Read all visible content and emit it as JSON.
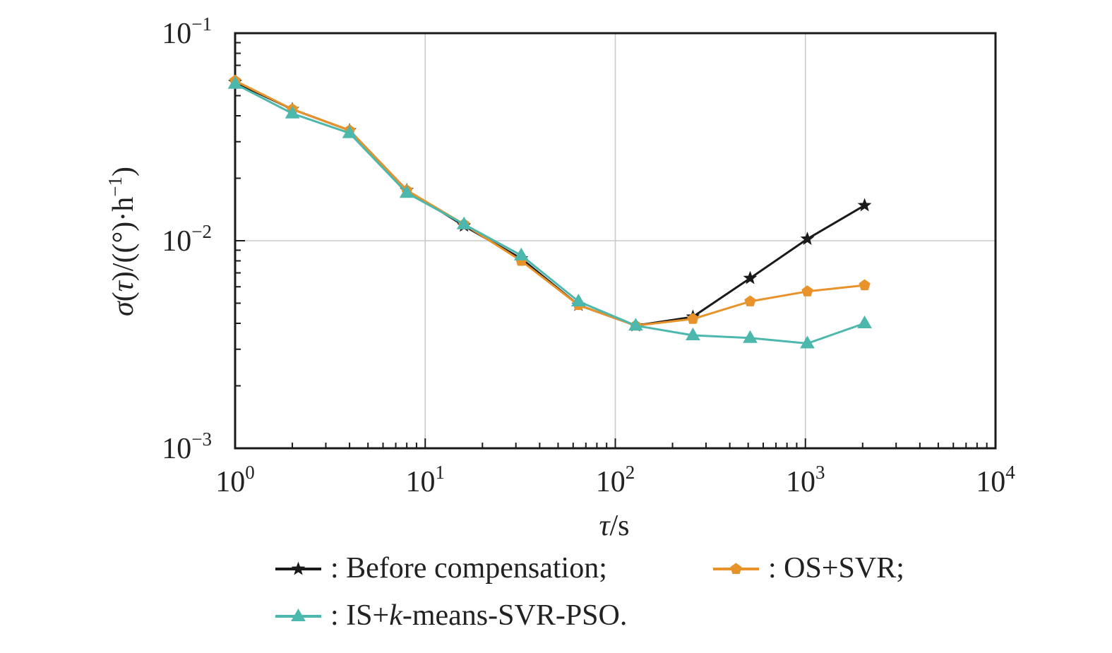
{
  "chart_data": {
    "type": "line",
    "x_scale": "log",
    "y_scale": "log",
    "xlim": [
      1,
      10000
    ],
    "ylim": [
      0.001,
      0.1
    ],
    "grid": true,
    "xlabel": "τ/s",
    "ylabel": "σ(τ)/((°)·h⁻¹)",
    "x_ticks": [
      {
        "base": "10",
        "exp": "0",
        "value": 1
      },
      {
        "base": "10",
        "exp": "1",
        "value": 10
      },
      {
        "base": "10",
        "exp": "2",
        "value": 100
      },
      {
        "base": "10",
        "exp": "3",
        "value": 1000
      },
      {
        "base": "10",
        "exp": "4",
        "value": 10000
      }
    ],
    "y_ticks": [
      {
        "base": "10",
        "exp": "−1",
        "value": 0.1
      },
      {
        "base": "10",
        "exp": "−2",
        "value": 0.01
      },
      {
        "base": "10",
        "exp": "−3",
        "value": 0.001
      }
    ],
    "x": [
      1,
      2,
      4,
      8,
      16,
      32,
      64,
      128,
      256,
      512,
      1024,
      2048
    ],
    "series": [
      {
        "name": "Before compensation",
        "color": "#1a1a1a",
        "marker": "star",
        "values": [
          0.058,
          0.043,
          0.034,
          0.0175,
          0.0118,
          0.0082,
          0.0049,
          0.0039,
          0.0043,
          0.0066,
          0.0102,
          0.0148
        ]
      },
      {
        "name": "OS+SVR",
        "color": "#e8922a",
        "marker": "pentagon",
        "values": [
          0.059,
          0.043,
          0.034,
          0.0175,
          0.012,
          0.008,
          0.0049,
          0.0039,
          0.0042,
          0.0051,
          0.0057,
          0.0061
        ]
      },
      {
        "name": "IS+k-means-SVR-PSO",
        "color": "#4cb8ad",
        "marker": "triangle",
        "values": [
          0.057,
          0.041,
          0.033,
          0.017,
          0.012,
          0.0085,
          0.0051,
          0.0039,
          0.0035,
          0.0034,
          0.0032,
          0.004
        ]
      }
    ],
    "legend": {
      "position": "bottom",
      "entries": [
        {
          "prefix": ": ",
          "text": "Before compensation;"
        },
        {
          "prefix": ": ",
          "text": "OS+SVR;"
        },
        {
          "prefix": ": ",
          "pre": "IS+",
          "italic": "k",
          "post": "-means-SVR-PSO."
        }
      ]
    }
  }
}
